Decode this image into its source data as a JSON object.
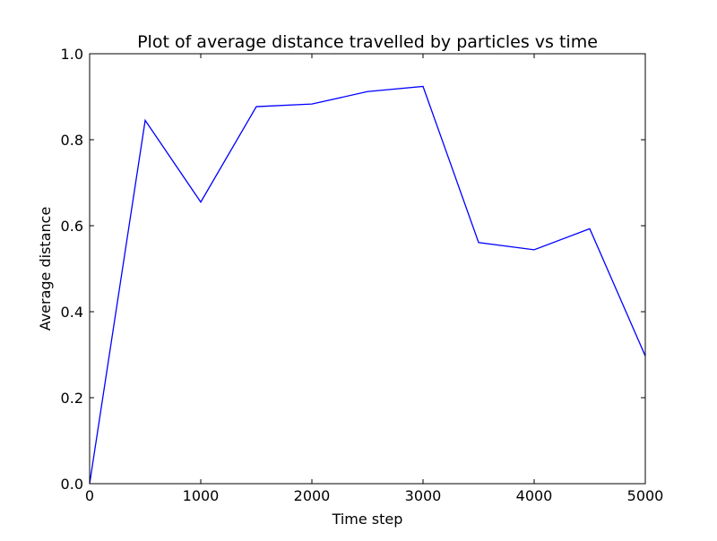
{
  "chart_data": {
    "type": "line",
    "title": "Plot of average distance travelled by particles vs time",
    "xlabel": "Time step",
    "ylabel": "Average distance",
    "xlim": [
      0,
      5000
    ],
    "ylim": [
      0.0,
      1.0
    ],
    "xticks": [
      0,
      1000,
      2000,
      3000,
      4000,
      5000
    ],
    "xtick_labels": [
      "0",
      "1000",
      "2000",
      "3000",
      "4000",
      "5000"
    ],
    "yticks": [
      0.0,
      0.2,
      0.4,
      0.6,
      0.8,
      1.0
    ],
    "ytick_labels": [
      "0.0",
      "0.2",
      "0.4",
      "0.6",
      "0.8",
      "1.0"
    ],
    "grid": false,
    "series": [
      {
        "color": "#0000ff",
        "x": [
          0,
          500,
          1000,
          1500,
          2000,
          2500,
          3000,
          3500,
          4000,
          4500,
          5000
        ],
        "y": [
          0.0,
          0.845,
          0.655,
          0.877,
          0.883,
          0.912,
          0.924,
          0.561,
          0.544,
          0.593,
          0.297
        ]
      }
    ]
  }
}
